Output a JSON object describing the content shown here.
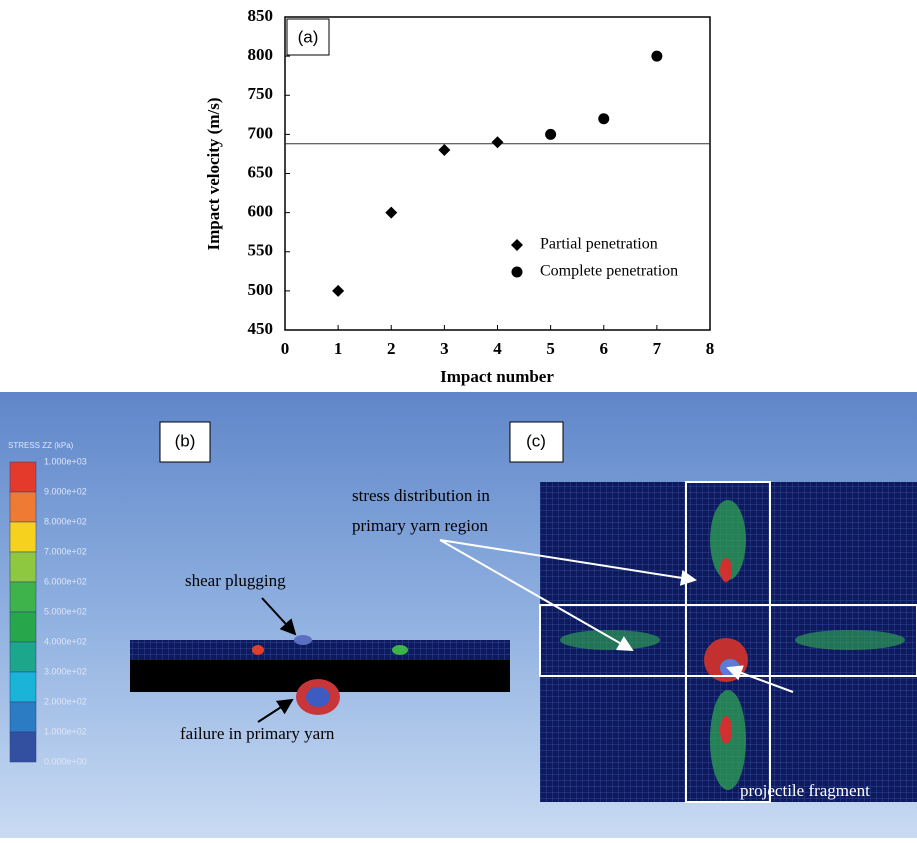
{
  "chart_data": {
    "type": "scatter",
    "annotation": "(a)",
    "x_label": "Impact number",
    "y_label": "Impact velocity  (m/s)",
    "xlim": [
      0,
      8
    ],
    "xticks": [
      0,
      1,
      2,
      3,
      4,
      5,
      6,
      7,
      8
    ],
    "ylim": [
      450,
      850
    ],
    "yticks": [
      450,
      500,
      550,
      600,
      650,
      700,
      750,
      800,
      850
    ],
    "reference_line": 688,
    "legend": "lower right",
    "series": [
      {
        "name": "Partial penetration",
        "marker": "diamond",
        "color": "#000000",
        "x": [
          1,
          2,
          3,
          4
        ],
        "values": [
          500,
          600,
          680,
          690
        ]
      },
      {
        "name": "Complete penetration",
        "marker": "circle",
        "color": "#000000",
        "x": [
          5,
          6,
          7
        ],
        "values": [
          700,
          720,
          800
        ]
      }
    ]
  },
  "panel_b": {
    "label": "(b)",
    "colorbar": {
      "title": "STRESS ZZ (kPa)",
      "labels": [
        "1.000e+03",
        "9.000e+02",
        "8.000e+02",
        "7.000e+02",
        "6.000e+02",
        "5.000e+02",
        "4.000e+02",
        "3.000e+02",
        "2.000e+02",
        "1.000e+02",
        "0.000e+00"
      ],
      "colors": [
        "#e33a2c",
        "#ee7a33",
        "#f6d11d",
        "#8ec740",
        "#3eb34b",
        "#27a64c",
        "#1ca68c",
        "#1ab4d8",
        "#2c7cc3",
        "#3350a0"
      ]
    },
    "annotations": [
      "shear plugging",
      "failure in primary yarn"
    ]
  },
  "panel_c": {
    "label": "(c)",
    "annotations": [
      "stress distribution in",
      "primary yarn region",
      "projectile fragment"
    ]
  }
}
